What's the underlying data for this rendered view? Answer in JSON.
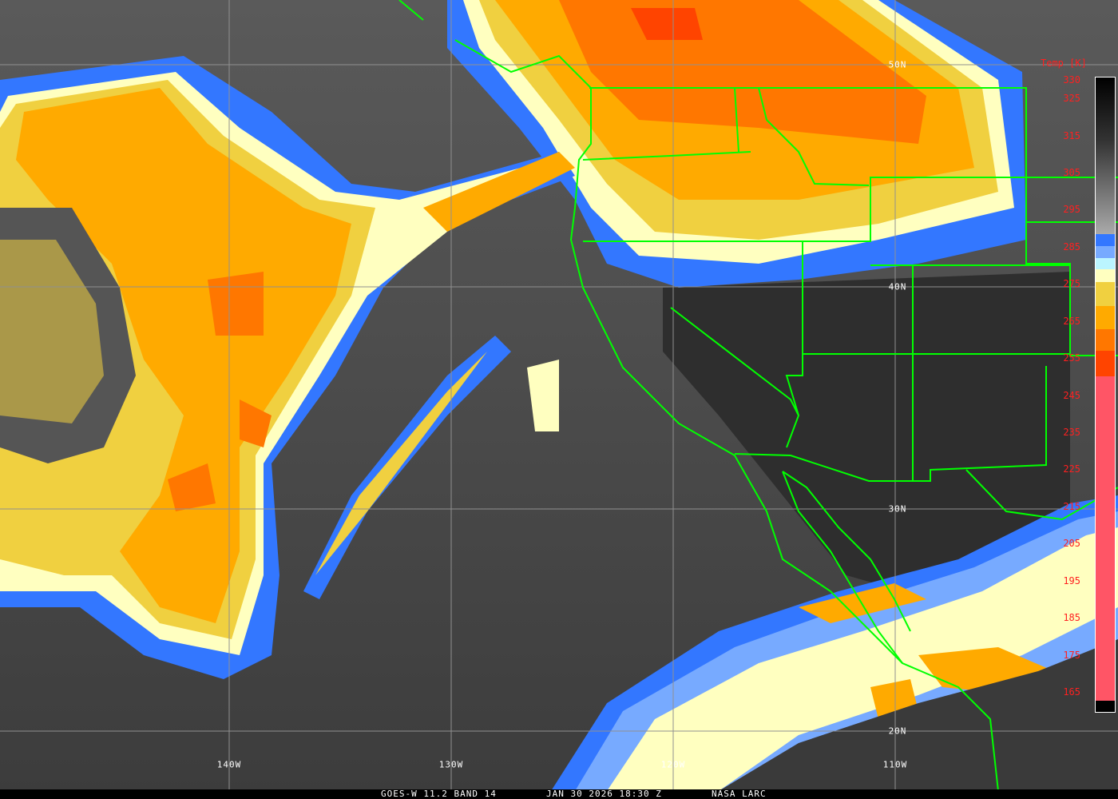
{
  "caption": {
    "satellite": "GOES-W 11.2 BAND 14",
    "datetime": "JAN 30 2026 18:30 Z",
    "source": "NASA LARC"
  },
  "legend": {
    "title": "Temp [K]",
    "ticks": [
      "330",
      "325",
      "315",
      "305",
      "295",
      "285",
      "275",
      "265",
      "255",
      "245",
      "235",
      "225",
      "215",
      "205",
      "195",
      "185",
      "175",
      "165"
    ],
    "colors": {
      "blue": "#3377ff",
      "light_blue": "#77aaff",
      "cyan": "#bbf5ff",
      "cream": "#ffffc0",
      "yellow": "#f0d040",
      "orange": "#ffaa00",
      "dark_orange": "#ff7700",
      "red_orange": "#ff4400",
      "pink": "#ff5566"
    }
  },
  "grid": {
    "latitudes": [
      "50N",
      "40N",
      "30N",
      "20N"
    ],
    "longitudes": [
      "140W",
      "130W",
      "120W",
      "110W"
    ]
  },
  "colors": {
    "grid": "#909090",
    "borders": "#00ff00",
    "ocean_clear": "#4a4a4a",
    "land_clear": "#2e2e2e"
  }
}
